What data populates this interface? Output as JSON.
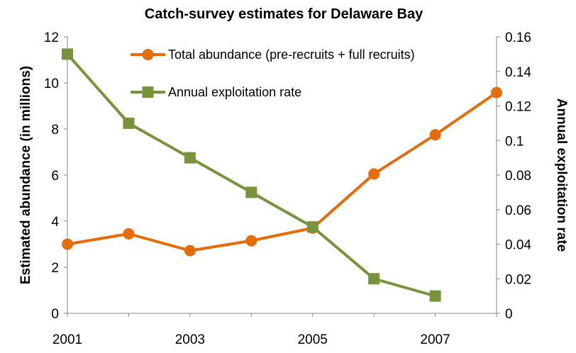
{
  "chart_data": {
    "type": "line",
    "title": "Catch-survey estimates for Delaware Bay",
    "x": [
      2001,
      2002,
      2003,
      2004,
      2005,
      2006,
      2007,
      2008
    ],
    "x_tick_labels": [
      "2001",
      "2003",
      "2005",
      "2007"
    ],
    "y_left": {
      "label": "Estimated abundance (in millions)",
      "range": [
        0,
        12
      ],
      "ticks": [
        "0",
        "2",
        "4",
        "6",
        "8",
        "10",
        "12"
      ]
    },
    "y_right": {
      "label": "Annual exploitation rate",
      "range": [
        0,
        0.16
      ],
      "ticks": [
        "0",
        "0.02",
        "0.04",
        "0.06",
        "0.08",
        "0.1",
        "0.12",
        "0.14",
        "0.16"
      ]
    },
    "series": [
      {
        "name": "Total abundance (pre-recruits + full recruits)",
        "axis": "left",
        "color": "#E46C0A",
        "marker": "circle",
        "x": [
          2001,
          2002,
          2003,
          2004,
          2005,
          2006,
          2007,
          2008
        ],
        "values": [
          3.0,
          3.45,
          2.72,
          3.15,
          3.7,
          6.05,
          7.75,
          9.58
        ]
      },
      {
        "name": "Annual exploitation rate",
        "axis": "right",
        "color": "#77933C",
        "marker": "square",
        "x": [
          2001,
          2002,
          2003,
          2004,
          2005,
          2006,
          2007
        ],
        "values": [
          0.15,
          0.11,
          0.09,
          0.07,
          0.05,
          0.02,
          0.01
        ]
      }
    ],
    "legend_position": "top-right",
    "grid": false
  }
}
